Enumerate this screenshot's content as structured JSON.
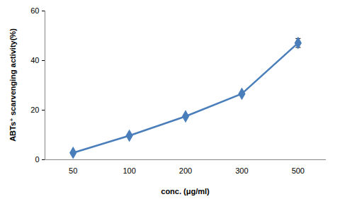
{
  "chart_data": {
    "type": "line",
    "x_label": "conc. (μg/ml)",
    "y_label": "ABTs⁺ scarvenging activity(%)",
    "categories": [
      "50",
      "100",
      "200",
      "300",
      "500"
    ],
    "values": [
      2.8,
      9.7,
      17.5,
      26.6,
      47.1
    ],
    "errors": [
      0,
      0,
      0,
      0,
      1.8
    ],
    "color": "#4a7ebb",
    "marker": "diamond",
    "ylim": [
      0,
      60
    ],
    "yticks": [
      0,
      20,
      40,
      60
    ],
    "grid": false
  }
}
